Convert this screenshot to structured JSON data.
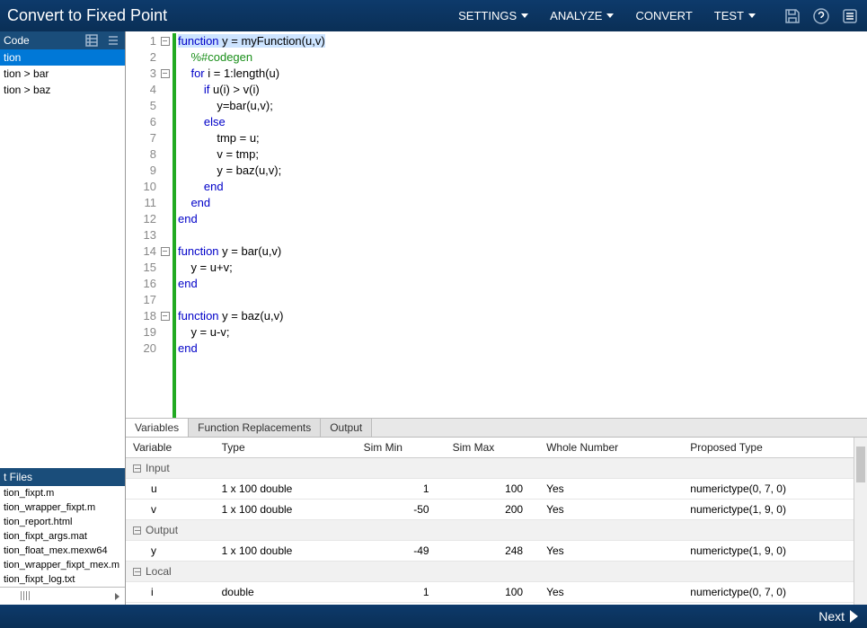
{
  "banner": {
    "title": "Convert to Fixed Point",
    "menu": [
      "SETTINGS",
      "ANALYZE",
      "CONVERT",
      "TEST"
    ],
    "menu_has_caret": [
      true,
      true,
      false,
      true
    ]
  },
  "sidebar": {
    "header1": "Code",
    "items": [
      {
        "label": "tion",
        "selected": true
      },
      {
        "label": "tion > bar",
        "selected": false
      },
      {
        "label": "tion > baz",
        "selected": false
      }
    ],
    "header2": "t Files",
    "files": [
      "tion_fixpt.m",
      "tion_wrapper_fixpt.m",
      "tion_report.html",
      "tion_fixpt_args.mat",
      "tion_float_mex.mexw64",
      "tion_wrapper_fixpt_mex.m",
      "tion_fixpt_log.txt"
    ]
  },
  "code": {
    "lines": [
      {
        "n": 1,
        "fold": true,
        "html": "<span class='hl'><span class='kw'>function</span> y = myFunction(u,v)</span>"
      },
      {
        "n": 2,
        "fold": false,
        "html": "    <span class='cm'>%#codegen</span>"
      },
      {
        "n": 3,
        "fold": true,
        "html": "    <span class='kw'>for</span> i = 1:length(u)"
      },
      {
        "n": 4,
        "fold": false,
        "html": "        <span class='kw'>if</span> u(i) > v(i)"
      },
      {
        "n": 5,
        "fold": false,
        "html": "            y=bar(u,v);"
      },
      {
        "n": 6,
        "fold": false,
        "html": "        <span class='kw'>else</span>"
      },
      {
        "n": 7,
        "fold": false,
        "html": "            tmp = u;"
      },
      {
        "n": 8,
        "fold": false,
        "html": "            v = tmp;"
      },
      {
        "n": 9,
        "fold": false,
        "html": "            y = baz(u,v);"
      },
      {
        "n": 10,
        "fold": false,
        "html": "        <span class='kw'>end</span>"
      },
      {
        "n": 11,
        "fold": false,
        "html": "    <span class='kw'>end</span>"
      },
      {
        "n": 12,
        "fold": false,
        "html": "<span class='kw'>end</span>"
      },
      {
        "n": 13,
        "fold": false,
        "html": ""
      },
      {
        "n": 14,
        "fold": true,
        "html": "<span class='kw'>function</span> y = bar(u,v)"
      },
      {
        "n": 15,
        "fold": false,
        "html": "    y = u+v;"
      },
      {
        "n": 16,
        "fold": false,
        "html": "<span class='kw'>end</span>"
      },
      {
        "n": 17,
        "fold": false,
        "html": ""
      },
      {
        "n": 18,
        "fold": true,
        "html": "<span class='kw'>function</span> y = baz(u,v)"
      },
      {
        "n": 19,
        "fold": false,
        "html": "    y = u-v;"
      },
      {
        "n": 20,
        "fold": false,
        "html": "<span class='kw'>end</span>"
      }
    ]
  },
  "tabs": [
    "Variables",
    "Function Replacements",
    "Output"
  ],
  "active_tab": 0,
  "table": {
    "columns": [
      "Variable",
      "Type",
      "Sim Min",
      "Sim Max",
      "Whole Number",
      "Proposed Type"
    ],
    "sections": [
      {
        "name": "Input",
        "rows": [
          {
            "v": "u",
            "t": "1 x 100 double",
            "min": "1",
            "max": "100",
            "wn": "Yes",
            "pt": "numerictype(0, 7, 0)"
          },
          {
            "v": "v",
            "t": "1 x 100 double",
            "min": "-50",
            "max": "200",
            "wn": "Yes",
            "pt": "numerictype(1, 9, 0)"
          }
        ]
      },
      {
        "name": "Output",
        "rows": [
          {
            "v": "y",
            "t": "1 x 100 double",
            "min": "-49",
            "max": "248",
            "wn": "Yes",
            "pt": "numerictype(1, 9, 0)"
          }
        ]
      },
      {
        "name": "Local",
        "rows": [
          {
            "v": "i",
            "t": "double",
            "min": "1",
            "max": "100",
            "wn": "Yes",
            "pt": "numerictype(0, 7, 0)"
          }
        ]
      }
    ]
  },
  "footer": {
    "next": "Next"
  }
}
